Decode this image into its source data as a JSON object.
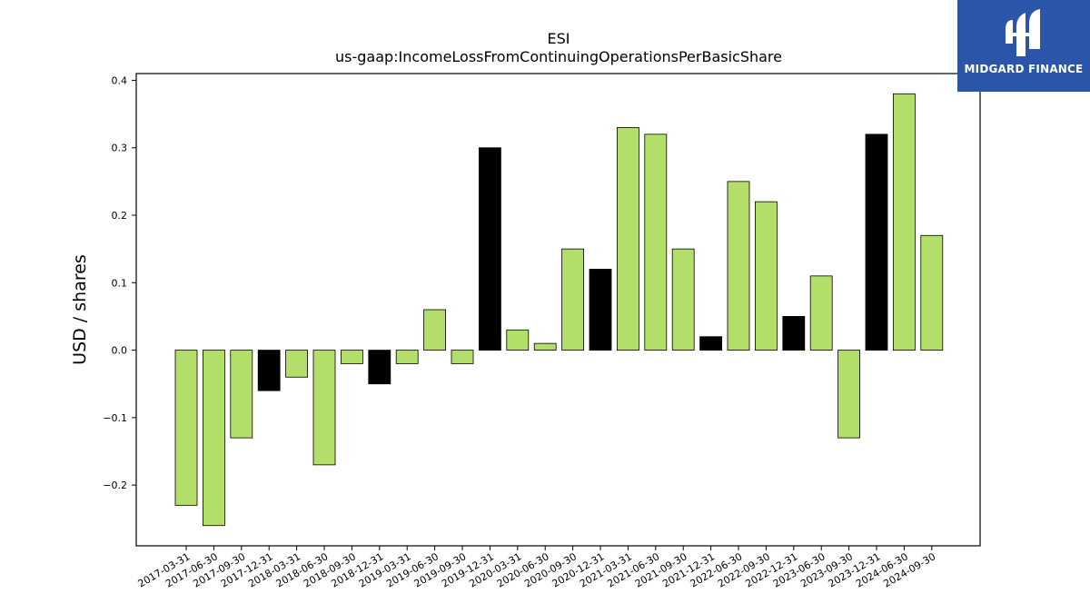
{
  "chart_data": {
    "type": "bar",
    "title": "ESI",
    "subtitle": "us-gaap:IncomeLossFromContinuingOperationsPerBasicShare",
    "ylabel": "USD / shares",
    "xlabel": "",
    "ylim": [
      -0.29,
      0.41
    ],
    "yticks": [
      -0.2,
      -0.1,
      0.0,
      0.1,
      0.2,
      0.3,
      0.4
    ],
    "ytick_labels": [
      "−0.2",
      "−0.1",
      "0.0",
      "0.1",
      "0.2",
      "0.3",
      "0.4"
    ],
    "grid": false,
    "colors": {
      "quarter": "#b3de69",
      "year_end": "#000000",
      "edge": "#000000"
    },
    "categories": [
      "2017-03-31",
      "2017-06-30",
      "2017-09-30",
      "2017-12-31",
      "2018-03-31",
      "2018-06-30",
      "2018-09-30",
      "2018-12-31",
      "2019-03-31",
      "2019-06-30",
      "2019-09-30",
      "2019-12-31",
      "2020-03-31",
      "2020-06-30",
      "2020-09-30",
      "2020-12-31",
      "2021-03-31",
      "2021-06-30",
      "2021-09-30",
      "2021-12-31",
      "2022-06-30",
      "2022-09-30",
      "2022-12-31",
      "2023-06-30",
      "2023-09-30",
      "2023-12-31",
      "2024-06-30",
      "2024-09-30"
    ],
    "values": [
      -0.23,
      -0.26,
      -0.13,
      -0.06,
      -0.04,
      -0.17,
      -0.02,
      -0.05,
      -0.02,
      0.06,
      -0.02,
      0.3,
      0.03,
      0.01,
      0.15,
      0.12,
      0.33,
      0.32,
      0.15,
      0.02,
      0.25,
      0.22,
      0.05,
      0.11,
      -0.13,
      0.32,
      0.38,
      0.17
    ]
  },
  "logo": {
    "text": "MIDGARD FINANCE"
  }
}
